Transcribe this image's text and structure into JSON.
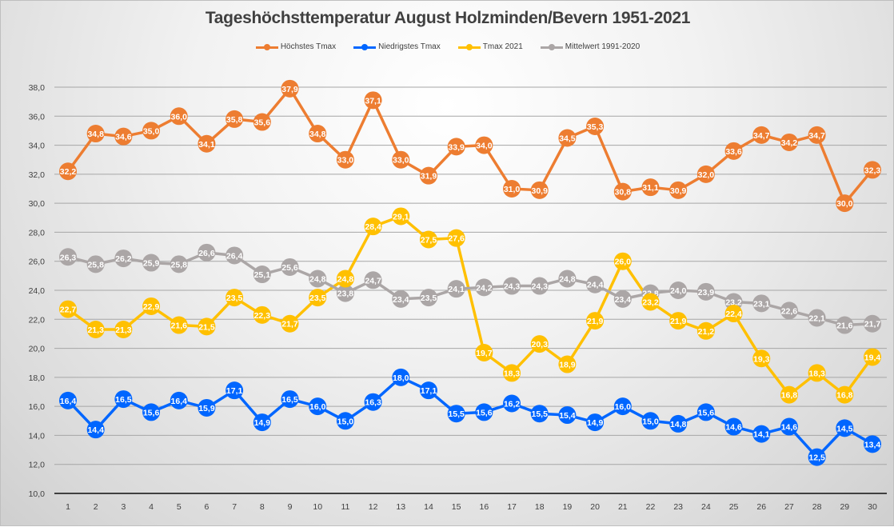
{
  "chart_data": {
    "type": "line",
    "title": "Tageshöchsttemperatur August Holzminden/Bevern 1951-2021",
    "xlabel": "",
    "ylabel": "",
    "ylim": [
      10.0,
      38.0
    ],
    "ytick_step": 2.0,
    "yticks": [
      "10,0",
      "12,0",
      "14,0",
      "16,0",
      "18,0",
      "20,0",
      "22,0",
      "24,0",
      "26,0",
      "28,0",
      "30,0",
      "32,0",
      "34,0",
      "36,0",
      "38,0"
    ],
    "grid": true,
    "legend_position": "top",
    "x": [
      "1",
      "2",
      "3",
      "4",
      "5",
      "6",
      "7",
      "8",
      "9",
      "10",
      "11",
      "12",
      "13",
      "14",
      "15",
      "16",
      "17",
      "18",
      "19",
      "20",
      "21",
      "22",
      "23",
      "24",
      "25",
      "26",
      "27",
      "28",
      "29",
      "30"
    ],
    "series": [
      {
        "name": "Höchstes Tmax",
        "color": "#ED7D31",
        "values": [
          32.2,
          34.8,
          34.6,
          35.0,
          36.0,
          34.1,
          35.8,
          35.6,
          37.9,
          34.8,
          33.0,
          37.1,
          33.0,
          31.9,
          33.9,
          34.0,
          31.0,
          30.9,
          34.5,
          35.3,
          30.8,
          31.1,
          30.9,
          32.0,
          33.6,
          34.7,
          34.2,
          34.7,
          30.0,
          32.3
        ]
      },
      {
        "name": "Niedrigstes Tmax",
        "color": "#0066FF",
        "values": [
          16.4,
          14.4,
          16.5,
          15.6,
          16.4,
          15.9,
          17.1,
          14.9,
          16.5,
          16.0,
          15.0,
          16.3,
          18.0,
          17.1,
          15.5,
          15.6,
          16.2,
          15.5,
          15.4,
          14.9,
          16.0,
          15.0,
          14.8,
          15.6,
          14.6,
          14.1,
          14.6,
          12.5,
          14.5,
          13.4
        ]
      },
      {
        "name": "Tmax 2021",
        "color": "#FFC000",
        "values": [
          22.7,
          21.3,
          21.3,
          22.9,
          21.6,
          21.5,
          23.5,
          22.3,
          21.7,
          23.5,
          24.8,
          28.4,
          29.1,
          27.5,
          27.6,
          19.7,
          18.3,
          20.3,
          18.9,
          21.9,
          26.0,
          23.2,
          21.9,
          21.2,
          22.4,
          19.3,
          16.8,
          18.3,
          16.8,
          19.4
        ]
      },
      {
        "name": "Mittelwert 1991-2020",
        "color": "#ABA6A6",
        "values": [
          26.3,
          25.8,
          26.2,
          25.9,
          25.8,
          26.6,
          26.4,
          25.1,
          25.6,
          24.8,
          23.8,
          24.7,
          23.4,
          23.5,
          24.1,
          24.2,
          24.3,
          24.3,
          24.8,
          24.4,
          23.4,
          23.8,
          24.0,
          23.9,
          23.2,
          23.1,
          22.6,
          22.1,
          21.6,
          21.7
        ]
      }
    ]
  }
}
